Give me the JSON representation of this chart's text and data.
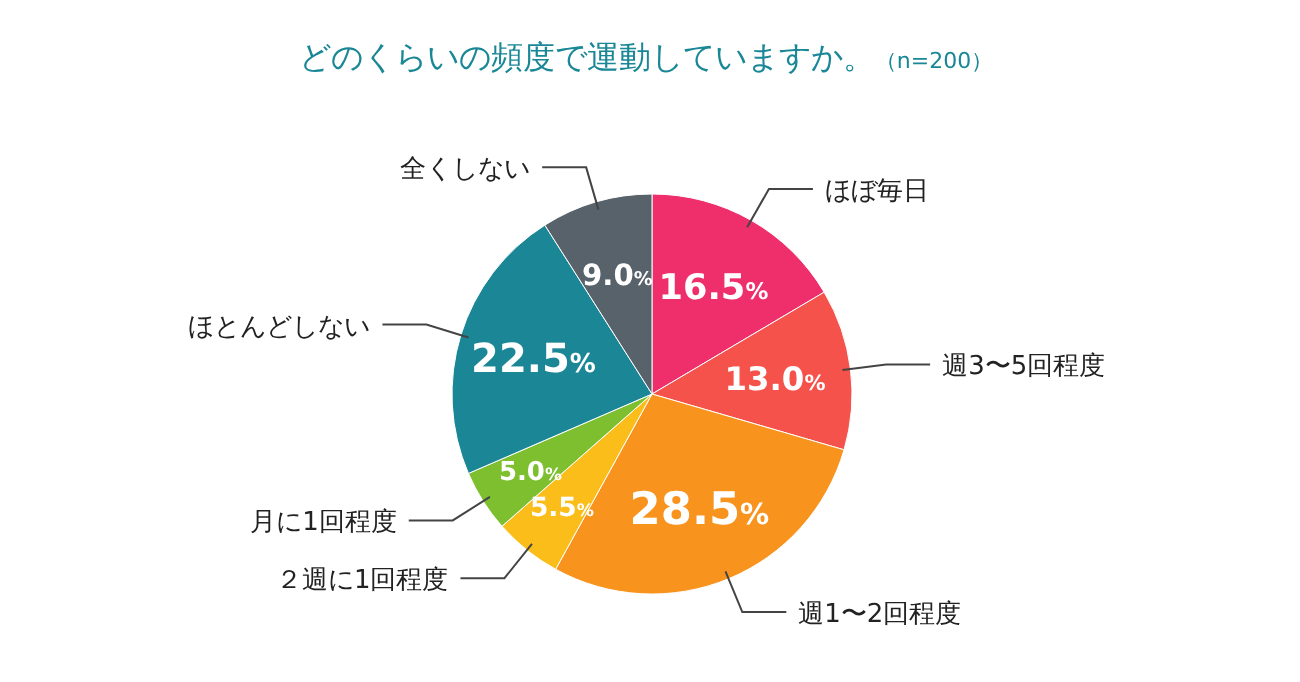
{
  "chart_data": {
    "type": "pie",
    "title": "どのくらいの頻度で運動していますか。",
    "subtitle": "（n=200）",
    "categories": [
      "ほぼ毎日",
      "週3〜5回程度",
      "週1〜2回程度",
      "２週に1回程度",
      "月に1回程度",
      "ほとんどしない",
      "全くしない"
    ],
    "values": [
      16.5,
      13.0,
      28.5,
      5.5,
      5.0,
      22.5,
      9.0
    ],
    "colors": [
      "#ee2f6b",
      "#f4524b",
      "#f8941e",
      "#fbbd1a",
      "#7dbf2f",
      "#1b8796",
      "#57626b"
    ],
    "value_labels": [
      "16.5%",
      "13.0%",
      "28.5%",
      "5.5%",
      "5.0%",
      "22.5%",
      "9.0%"
    ]
  }
}
